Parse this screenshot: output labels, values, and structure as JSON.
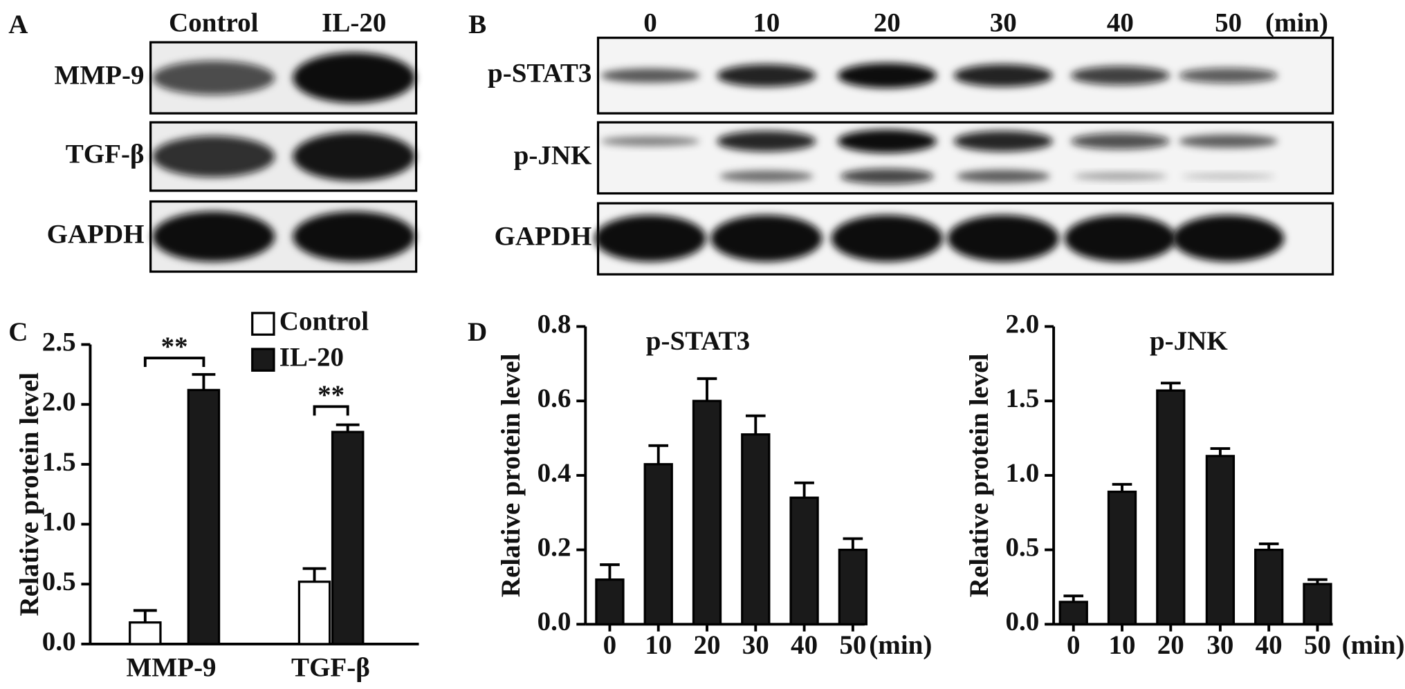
{
  "panel_labels": [
    "A",
    "B",
    "C",
    "D"
  ],
  "blot_a": {
    "lanes": [
      "Control",
      "IL-20"
    ],
    "rows": [
      "MMP-9",
      "TGF-β",
      "GAPDH"
    ]
  },
  "blot_b": {
    "lanes": [
      "0",
      "10",
      "20",
      "30",
      "40",
      "50"
    ],
    "lane_unit": "(min)",
    "rows": [
      "p-STAT3",
      "p-JNK",
      "GAPDH"
    ]
  },
  "chart_data": [
    {
      "type": "bar",
      "y_label": "Relative protein level",
      "categories": [
        "MMP-9",
        "TGF-β"
      ],
      "series": [
        {
          "name": "Control",
          "color": "#ffffff",
          "values": [
            0.18,
            0.52
          ],
          "errors": [
            0.1,
            0.11
          ]
        },
        {
          "name": "IL-20",
          "color": "#1a1a1a",
          "values": [
            2.12,
            1.77
          ],
          "errors": [
            0.13,
            0.06
          ]
        }
      ],
      "annotations": [
        "**",
        "**"
      ],
      "ylim": [
        0,
        2.5
      ],
      "yticks": [
        {
          "value": 0,
          "label": "0.0"
        },
        0.5,
        {
          "value": 1,
          "label": "1.0"
        },
        1.5,
        {
          "value": 2,
          "label": "2.0"
        },
        2.5
      ]
    },
    {
      "type": "bar",
      "title": "p-STAT3",
      "y_label": "Relative protein level",
      "x_unit": "(min)",
      "categories": [
        "0",
        "10",
        "20",
        "30",
        "40",
        "50"
      ],
      "series": [
        {
          "color": "#1a1a1a",
          "values": [
            0.12,
            0.43,
            0.6,
            0.51,
            0.34,
            0.2
          ],
          "errors": [
            0.04,
            0.05,
            0.06,
            0.05,
            0.04,
            0.03
          ]
        }
      ],
      "ylim": [
        0,
        0.8
      ],
      "yticks": [
        {
          "value": 0,
          "label": "0.0"
        },
        0.2,
        0.4,
        0.6,
        0.8
      ]
    },
    {
      "type": "bar",
      "title": "p-JNK",
      "y_label": "Relative protein level",
      "x_unit": "(min)",
      "categories": [
        "0",
        "10",
        "20",
        "30",
        "40",
        "50"
      ],
      "series": [
        {
          "color": "#1a1a1a",
          "values": [
            0.15,
            0.89,
            1.57,
            1.13,
            0.5,
            0.27
          ],
          "errors": [
            0.04,
            0.05,
            0.05,
            0.05,
            0.04,
            0.03
          ]
        }
      ],
      "ylim": [
        0,
        2
      ],
      "yticks": [
        {
          "value": 0,
          "label": "0.0"
        },
        0.5,
        {
          "value": 1,
          "label": "1.0"
        },
        1.5,
        {
          "value": 2,
          "label": "2.0"
        }
      ]
    }
  ]
}
